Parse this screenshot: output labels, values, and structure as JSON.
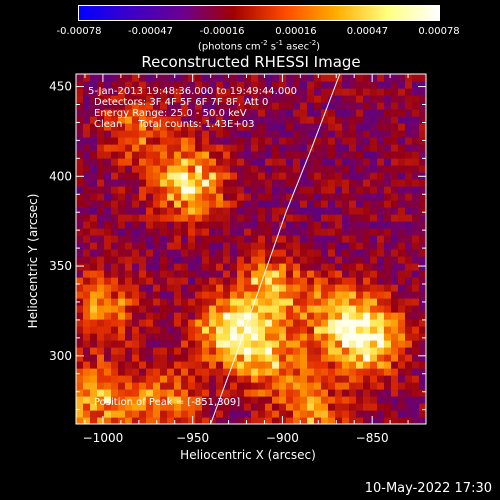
{
  "colorbar": {
    "ticks": [
      "-0.00078",
      "-0.00047",
      "-0.00016",
      "0.00016",
      "0.00047",
      "0.00078"
    ],
    "tick_values": [
      -0.00078,
      -0.00047,
      -0.00016,
      0.00016,
      0.00047,
      0.00078
    ],
    "unit_prefix": "(photons cm",
    "unit_sup1": "-2",
    "unit_mid": " s",
    "unit_sup2": "-1",
    "unit_mid2": " asec",
    "unit_sup3": "-2",
    "unit_suffix": ")",
    "colors": [
      "#0000ff",
      "#3d00c8",
      "#6a0090",
      "#a00000",
      "#ff4a00",
      "#ffae00",
      "#ffff80",
      "#ffffff"
    ]
  },
  "chart_data": {
    "type": "heatmap",
    "title": "Reconstructed RHESSI Image",
    "xlabel": "Heliocentric X (arcsec)",
    "ylabel": "Heliocentric Y (arcsec)",
    "xlim": [
      -1015,
      -820
    ],
    "ylim": [
      262,
      457
    ],
    "xticks": [
      -1000,
      -950,
      -900,
      -850
    ],
    "yticks": [
      300,
      350,
      400,
      450
    ],
    "xtick_labels": [
      "−1000",
      "−950",
      "−900",
      "−850"
    ],
    "ytick_labels": [
      "300",
      "350",
      "400",
      "450"
    ],
    "hotspots": [
      {
        "x": -952,
        "y": 397,
        "value": 0.00078
      },
      {
        "x": -928,
        "y": 313,
        "value": 0.00078
      },
      {
        "x": -851,
        "y": 309,
        "value": 0.00078
      },
      {
        "x": -868,
        "y": 322,
        "value": 0.0006
      },
      {
        "x": -906,
        "y": 338,
        "value": 0.0006
      },
      {
        "x": -1000,
        "y": 328,
        "value": 0.0005
      },
      {
        "x": -1003,
        "y": 275,
        "value": 0.0006
      },
      {
        "x": -965,
        "y": 275,
        "value": 0.0005
      },
      {
        "x": -883,
        "y": 268,
        "value": 0.0005
      },
      {
        "x": -980,
        "y": 425,
        "value": 0.0004
      },
      {
        "x": -906,
        "y": 297,
        "value": 0.0005
      }
    ],
    "limb_line": [
      [
        -940,
        262
      ],
      [
        -926,
        300
      ],
      [
        -912,
        340
      ],
      [
        -898,
        380
      ],
      [
        -884,
        415
      ],
      [
        -868,
        457
      ]
    ],
    "grid": false
  },
  "annotations": {
    "time_range": "5-Jan-2013 19:48:36.000 to 19:49:44.000",
    "detectors": "Detectors: 3F 4F 5F 6F 7F 8F, Att 0",
    "energy": "Energy Range: 25.0 - 50.0 keV",
    "clean": "Clean     Total counts: 1.43E+03",
    "peak": "Position of Peak = [-851,309]"
  },
  "footer": {
    "date": "10-May-2022 17:30"
  }
}
